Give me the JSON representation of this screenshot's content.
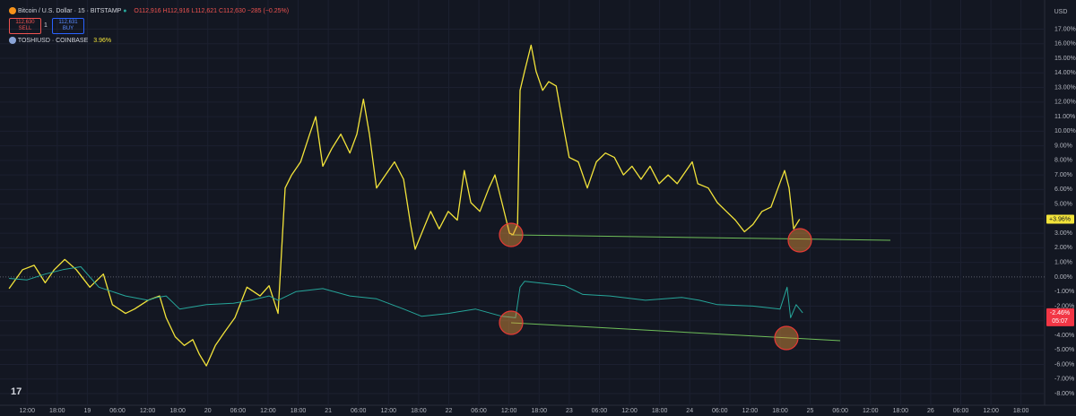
{
  "chart_data": {
    "type": "line",
    "ohlc": [
      "O112,916",
      "H112,916",
      "L112,621",
      "C112,630",
      "−285 (−0.25%)"
    ],
    "sell_price": "112,630",
    "sell": "SELL",
    "qty": "1",
    "buy_price": "112,631",
    "buy": "BUY",
    "currency": "USD",
    "countdown": "05:07",
    "grid": true,
    "xlim": [
      -5.4,
      202.7
    ],
    "ylim": [
      -8.8,
      19.0
    ],
    "xticks": [
      {
        "value": 0,
        "label": "12:00"
      },
      {
        "value": 6,
        "label": "18:00"
      },
      {
        "value": 12,
        "label": "19"
      },
      {
        "value": 18,
        "label": "06:00"
      },
      {
        "value": 24,
        "label": "12:00"
      },
      {
        "value": 30,
        "label": "18:00"
      },
      {
        "value": 36,
        "label": "20"
      },
      {
        "value": 42,
        "label": "06:00"
      },
      {
        "value": 48,
        "label": "12:00"
      },
      {
        "value": 54,
        "label": "18:00"
      },
      {
        "value": 60,
        "label": "21"
      },
      {
        "value": 66,
        "label": "06:00"
      },
      {
        "value": 72,
        "label": "12:00"
      },
      {
        "value": 78,
        "label": "18:00"
      },
      {
        "value": 84,
        "label": "22"
      },
      {
        "value": 90,
        "label": "06:00"
      },
      {
        "value": 96,
        "label": "12:00"
      },
      {
        "value": 102,
        "label": "18:00"
      },
      {
        "value": 108,
        "label": "23"
      },
      {
        "value": 114,
        "label": "06:00"
      },
      {
        "value": 120,
        "label": "12:00"
      },
      {
        "value": 126,
        "label": "18:00"
      },
      {
        "value": 132,
        "label": "24"
      },
      {
        "value": 138,
        "label": "06:00"
      },
      {
        "value": 144,
        "label": "12:00"
      },
      {
        "value": 150,
        "label": "18:00"
      },
      {
        "value": 156,
        "label": "25"
      },
      {
        "value": 162,
        "label": "06:00"
      },
      {
        "value": 168,
        "label": "12:00"
      },
      {
        "value": 174,
        "label": "18:00"
      },
      {
        "value": 180,
        "label": "26"
      },
      {
        "value": 186,
        "label": "06:00"
      },
      {
        "value": 192,
        "label": "12:00"
      },
      {
        "value": 198,
        "label": "18:00"
      }
    ],
    "yticks": [
      {
        "value": 17,
        "label": "17.00%"
      },
      {
        "value": 16,
        "label": "16.00%"
      },
      {
        "value": 15,
        "label": "15.00%"
      },
      {
        "value": 14,
        "label": "14.00%"
      },
      {
        "value": 13,
        "label": "13.00%"
      },
      {
        "value": 12,
        "label": "12.00%"
      },
      {
        "value": 11,
        "label": "11.00%"
      },
      {
        "value": 10,
        "label": "10.00%"
      },
      {
        "value": 9,
        "label": "9.00%"
      },
      {
        "value": 8,
        "label": "8.00%"
      },
      {
        "value": 7,
        "label": "7.00%"
      },
      {
        "value": 6,
        "label": "6.00%"
      },
      {
        "value": 5,
        "label": "5.00%"
      },
      {
        "value": 4,
        "label": "4.00%"
      },
      {
        "value": 3,
        "label": "3.00%"
      },
      {
        "value": 2,
        "label": "2.00%"
      },
      {
        "value": 1,
        "label": "1.00%"
      },
      {
        "value": 0,
        "label": "0.00%"
      },
      {
        "value": -1,
        "label": "-1.00%"
      },
      {
        "value": -2,
        "label": "-2.00%"
      },
      {
        "value": -3,
        "label": "-3.00%"
      },
      {
        "value": -4,
        "label": "-4.00%"
      },
      {
        "value": -5,
        "label": "-5.00%"
      },
      {
        "value": -6,
        "label": "-6.00%"
      },
      {
        "value": -7,
        "label": "-7.00%"
      },
      {
        "value": -8,
        "label": "-8.00%"
      }
    ],
    "series": [
      {
        "name": "TOSHIUSD · COINBASE",
        "legend_value": "3.96%",
        "last_value_label": "+3.96%",
        "color": "#f2e33a",
        "x": [
          -3.6,
          -0.9,
          1.4,
          3.6,
          5.4,
          7.5,
          9.8,
          12.5,
          15.2,
          17.0,
          19.6,
          21.4,
          24.1,
          26.4,
          27.7,
          29.5,
          31.3,
          33.0,
          34.3,
          35.7,
          37.5,
          39.3,
          41.4,
          43.8,
          46.4,
          48.2,
          50.0,
          51.4,
          52.7,
          54.5,
          56.3,
          57.5,
          58.9,
          60.7,
          62.5,
          64.3,
          65.7,
          67.0,
          68.2,
          69.6,
          71.4,
          73.2,
          75.0,
          76.4,
          77.3,
          78.6,
          80.4,
          82.1,
          83.9,
          85.7,
          87.1,
          88.4,
          90.2,
          92.0,
          93.2,
          94.6,
          96.1,
          96.8,
          97.7,
          98.2,
          99.1,
          100.4,
          101.4,
          102.7,
          103.9,
          105.4,
          106.8,
          108.0,
          109.8,
          111.6,
          113.4,
          115.2,
          117.0,
          118.8,
          120.5,
          122.3,
          124.1,
          125.9,
          127.7,
          129.5,
          131.3,
          132.5,
          133.6,
          135.7,
          137.5,
          139.3,
          141.1,
          142.9,
          144.6,
          146.4,
          148.2,
          149.6,
          150.9,
          151.8,
          152.7,
          153.9
        ],
        "values": [
          -0.8,
          0.5,
          0.8,
          -0.4,
          0.5,
          1.2,
          0.5,
          -0.7,
          0.2,
          -1.9,
          -2.5,
          -2.2,
          -1.6,
          -1.3,
          -2.8,
          -4.1,
          -4.7,
          -4.3,
          -5.3,
          -6.1,
          -4.7,
          -3.8,
          -2.8,
          -0.7,
          -1.3,
          -0.6,
          -2.5,
          6.1,
          7.0,
          7.9,
          9.8,
          11.0,
          7.6,
          8.8,
          9.8,
          8.5,
          9.8,
          12.2,
          9.8,
          6.1,
          7.0,
          7.9,
          6.7,
          3.6,
          1.9,
          3.0,
          4.5,
          3.3,
          4.5,
          3.9,
          7.3,
          5.1,
          4.5,
          6.1,
          7.0,
          5.1,
          3.0,
          2.9,
          3.6,
          12.8,
          14.1,
          15.9,
          14.1,
          12.8,
          13.4,
          13.1,
          10.4,
          8.2,
          7.9,
          6.1,
          7.9,
          8.5,
          8.2,
          7.0,
          7.6,
          6.7,
          7.6,
          6.4,
          7.0,
          6.4,
          7.3,
          7.9,
          6.4,
          6.1,
          5.1,
          4.5,
          3.9,
          3.1,
          3.6,
          4.5,
          4.8,
          6.1,
          7.3,
          6.1,
          3.3,
          3.96
        ]
      },
      {
        "name": "Bitcoin / U.S. Dollar · 15 · BITSTAMP",
        "last_value_label": "-2.46%",
        "color": "#26a69a",
        "x": [
          -3.6,
          0,
          3.6,
          7.1,
          10.7,
          14.3,
          19.6,
          24.1,
          25.9,
          27.7,
          30.4,
          35.7,
          41.1,
          44.6,
          48.2,
          50.0,
          53.6,
          58.9,
          64.3,
          69.6,
          75.0,
          78.6,
          83.9,
          89.3,
          94.6,
          97.3,
          98.2,
          99.1,
          101.8,
          107.1,
          110.7,
          116.1,
          123.2,
          130.4,
          133.9,
          137.5,
          144.6,
          150.0,
          151.4,
          152.1,
          153.2,
          154.5
        ],
        "values": [
          -0.1,
          -0.2,
          0.2,
          0.5,
          0.7,
          -0.7,
          -1.3,
          -1.6,
          -1.4,
          -1.3,
          -2.2,
          -1.9,
          -1.8,
          -1.6,
          -1.3,
          -1.6,
          -1.0,
          -0.8,
          -1.3,
          -1.5,
          -2.2,
          -2.7,
          -2.5,
          -2.2,
          -2.7,
          -2.8,
          -0.7,
          -0.3,
          -0.4,
          -0.6,
          -1.2,
          -1.3,
          -1.6,
          -1.4,
          -1.6,
          -1.9,
          -2.0,
          -2.2,
          -0.7,
          -2.8,
          -1.9,
          -2.46
        ]
      }
    ]
  }
}
